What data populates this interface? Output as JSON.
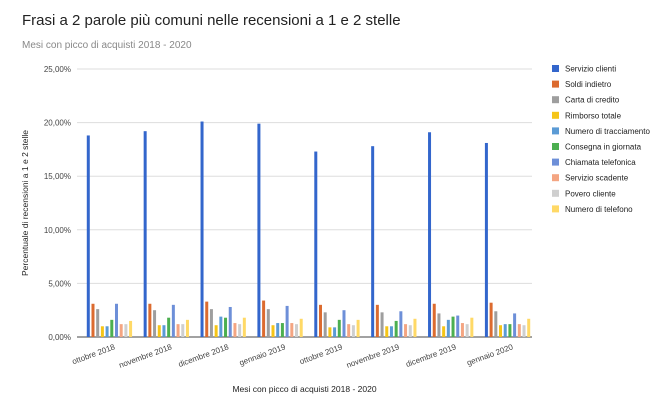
{
  "chart_data": {
    "type": "bar",
    "title": "Frasi a 2 parole più comuni nelle recensioni a 1 e 2 stelle",
    "subtitle": "Mesi con picco di acquisti 2018 - 2020",
    "xlabel": "Mesi con picco di acquisti 2018 - 2020",
    "ylabel": "Percentuale di recensioni a 1 e 2 stelle",
    "ylim": [
      0,
      25
    ],
    "yticks": [
      0,
      5,
      10,
      15,
      20,
      25
    ],
    "ytick_labels": [
      "0,00%",
      "5,00%",
      "10,00%",
      "15,00%",
      "20,00%",
      "25,00%"
    ],
    "legend_position": "right",
    "categories": [
      "ottobre 2018",
      "novembre 2018",
      "dicembre 2018",
      "gennaio 2019",
      "ottobre 2019",
      "novembre 2019",
      "dicembre 2019",
      "gennaio 2020"
    ],
    "series": [
      {
        "name": "Servizio clienti",
        "color": "#3366cc",
        "values": [
          18.8,
          19.2,
          20.1,
          19.9,
          17.3,
          17.8,
          19.1,
          18.1
        ]
      },
      {
        "name": "Soldi indietro",
        "color": "#dc6b2f",
        "values": [
          3.1,
          3.1,
          3.3,
          3.4,
          3.0,
          3.0,
          3.1,
          3.2
        ]
      },
      {
        "name": "Carta di credito",
        "color": "#9e9e9e",
        "values": [
          2.6,
          2.5,
          2.6,
          2.6,
          2.3,
          2.3,
          2.2,
          2.4
        ]
      },
      {
        "name": "Rimborso totale",
        "color": "#f5c518",
        "values": [
          1.0,
          1.1,
          1.1,
          1.1,
          0.9,
          1.0,
          1.0,
          1.1
        ]
      },
      {
        "name": "Numero di tracciamento",
        "color": "#5b9bd5",
        "values": [
          1.0,
          1.1,
          1.9,
          1.3,
          0.9,
          1.0,
          1.6,
          1.2
        ]
      },
      {
        "name": "Consegna in giornata",
        "color": "#4caf50",
        "values": [
          1.6,
          1.8,
          1.8,
          1.3,
          1.6,
          1.5,
          1.9,
          1.2
        ]
      },
      {
        "name": "Chiamata telefonica",
        "color": "#6d8fd8",
        "values": [
          3.1,
          3.0,
          2.8,
          2.9,
          2.5,
          2.4,
          2.0,
          2.2
        ]
      },
      {
        "name": "Servizio scadente",
        "color": "#f4a582",
        "values": [
          1.2,
          1.2,
          1.3,
          1.3,
          1.2,
          1.2,
          1.3,
          1.2
        ]
      },
      {
        "name": "Povero cliente",
        "color": "#cfcfcf",
        "values": [
          1.2,
          1.2,
          1.2,
          1.2,
          1.1,
          1.1,
          1.2,
          1.1
        ]
      },
      {
        "name": "Numero di telefono",
        "color": "#ffd966",
        "values": [
          1.5,
          1.6,
          1.8,
          1.7,
          1.6,
          1.7,
          1.8,
          1.7
        ]
      }
    ]
  }
}
